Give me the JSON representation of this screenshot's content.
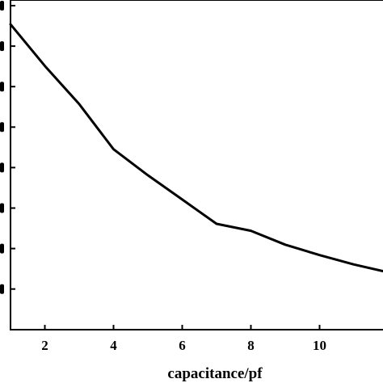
{
  "chart_data": {
    "type": "line",
    "title": "",
    "xlabel": "capacitance/pf",
    "ylabel": "",
    "xlim": [
      1,
      12
    ],
    "x_ticks": [
      2,
      4,
      6,
      8,
      10
    ],
    "x_tick_labels": [
      "2",
      "4",
      "6",
      "8",
      "10"
    ],
    "y_tick_count": 8,
    "grid": false,
    "legend": "none",
    "series": [
      {
        "color": "#000000",
        "points": [
          [
            1,
            0.93
          ],
          [
            2,
            0.81
          ],
          [
            3,
            0.7
          ],
          [
            4,
            0.57
          ],
          [
            5,
            0.495
          ],
          [
            6,
            0.425
          ],
          [
            7,
            0.355
          ],
          [
            8,
            0.335
          ],
          [
            9,
            0.295
          ],
          [
            10,
            0.265
          ],
          [
            11,
            0.238
          ],
          [
            12,
            0.215
          ]
        ]
      }
    ]
  }
}
